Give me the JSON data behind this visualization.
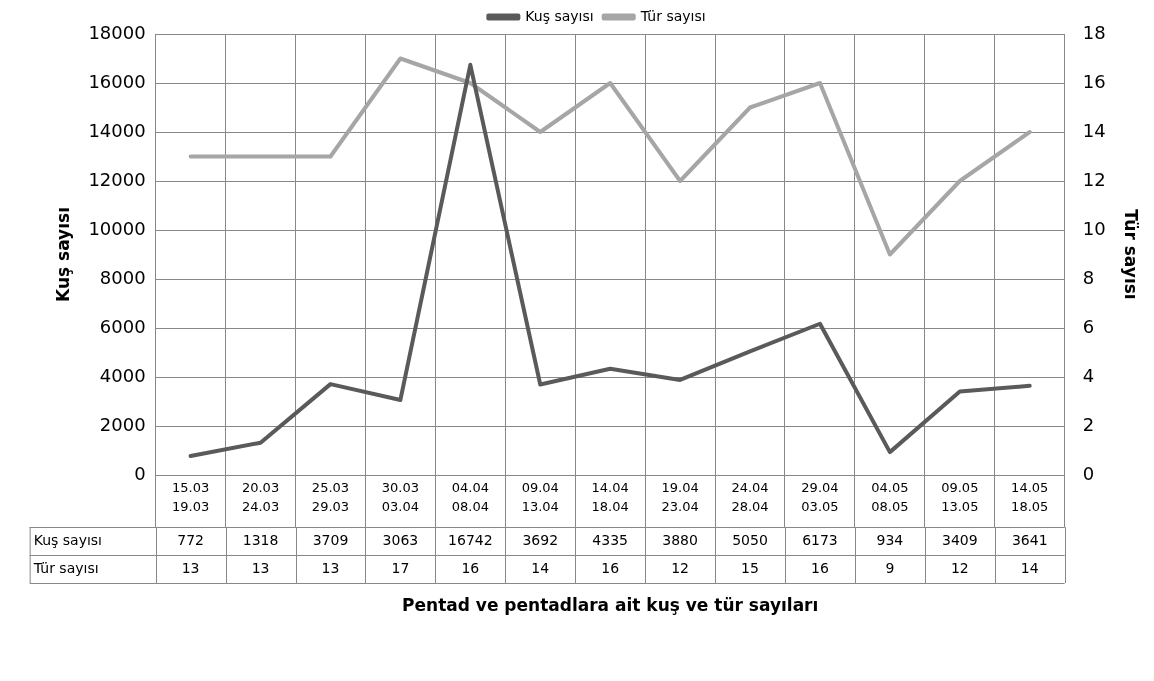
{
  "chart_data": {
    "type": "line",
    "xlabel": "Pentad ve pentadlara ait kuş ve tür sayıları",
    "ylabel": "Kuş sayısı",
    "y2label": "Tür sayısı",
    "categories": [
      "15.03\n19.03",
      "20.03\n24.03",
      "25.03\n29.03",
      "30.03\n03.04",
      "04.04\n08.04",
      "09.04\n13.04",
      "14.04\n18.04",
      "19.04\n23.04",
      "24.04\n28.04",
      "29.04\n03.05",
      "04.05\n08.05",
      "09.05\n13.05",
      "14.05\n18.05"
    ],
    "series": [
      {
        "name": "Kuş sayısı",
        "color": "#5a5a5a",
        "values": [
          772,
          1318,
          3709,
          3063,
          16742,
          3692,
          4335,
          3880,
          5050,
          6173,
          934,
          3409,
          3641
        ]
      },
      {
        "name": "Tür sayısı",
        "color": "#a6a6a6",
        "axis": "y2",
        "values": [
          13,
          13,
          13,
          17,
          16,
          14,
          16,
          12,
          15,
          16,
          9,
          12,
          14
        ]
      }
    ],
    "ylim": [
      0,
      18000
    ],
    "yticks": [
      0,
      2000,
      4000,
      6000,
      8000,
      10000,
      12000,
      14000,
      16000,
      18000
    ],
    "y2lim": [
      0,
      18
    ],
    "y2ticks": [
      0,
      2,
      4,
      6,
      8,
      10,
      12,
      14,
      16,
      18
    ],
    "grid": true,
    "legend": "top",
    "marker": "none",
    "line_style": "solid",
    "data_labels": true
  }
}
